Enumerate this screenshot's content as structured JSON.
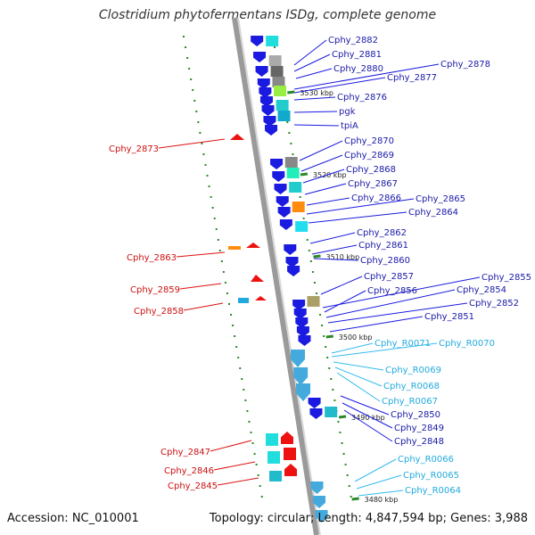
{
  "title": "Clostridium phytofermentans ISDg, complete genome",
  "footer": {
    "accession": "Accession: NC_010001",
    "summary": "Topology: circular; Length: 4,847,594 bp; Genes: 3,988"
  },
  "colors": {
    "backbone": "#8c8c8c",
    "forward_label": "#1a1aa8",
    "reverse_label": "#cc1111",
    "rna_label": "#22aadd",
    "tick": "#2a8a2a"
  },
  "ticks": [
    {
      "label": "3530 kbp"
    },
    {
      "label": "3520 kbp"
    },
    {
      "label": "3510 kbp"
    },
    {
      "label": "3500 kbp"
    },
    {
      "label": "3490 kbp"
    },
    {
      "label": "3480 kbp"
    }
  ],
  "forward_labels": [
    "Cphy_2882",
    "Cphy_2881",
    "Cphy_2880",
    "Cphy_2878",
    "Cphy_2877",
    "Cphy_2876",
    "pgk",
    "tpiA",
    "Cphy_2870",
    "Cphy_2869",
    "Cphy_2868",
    "Cphy_2867",
    "Cphy_2866",
    "Cphy_2865",
    "Cphy_2864",
    "Cphy_2862",
    "Cphy_2861",
    "Cphy_2860",
    "Cphy_2857",
    "Cphy_2855",
    "Cphy_2856",
    "Cphy_2854",
    "Cphy_2852",
    "Cphy_2851",
    "Cphy_2850",
    "Cphy_2849",
    "Cphy_2848"
  ],
  "rna_labels": [
    "Cphy_R0071",
    "Cphy_R0070",
    "Cphy_R0069",
    "Cphy_R0068",
    "Cphy_R0067",
    "Cphy_R0066",
    "Cphy_R0065",
    "Cphy_R0064"
  ],
  "reverse_labels": [
    "Cphy_2873",
    "Cphy_2863",
    "Cphy_2859",
    "Cphy_2858",
    "Cphy_2847",
    "Cphy_2846",
    "Cphy_2845"
  ]
}
